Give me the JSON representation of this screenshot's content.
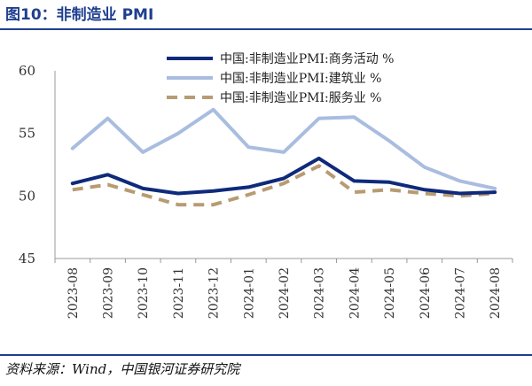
{
  "title": "图10：非制造业 PMI",
  "source": "资料来源：Wind，中国银河证券研究院",
  "chart_data": {
    "type": "line",
    "categories": [
      "2023-08",
      "2023-09",
      "2023-10",
      "2023-11",
      "2023-12",
      "2024-01",
      "2024-02",
      "2024-03",
      "2024-04",
      "2024-05",
      "2024-06",
      "2024-07",
      "2024-08"
    ],
    "ylim": [
      45,
      60
    ],
    "yticks": [
      45,
      50,
      55,
      60
    ],
    "series": [
      {
        "name": "中国:非制造业PMI:商务活动 %",
        "color": "#0f2a7a",
        "style": "solid",
        "values": [
          51.0,
          51.7,
          50.6,
          50.2,
          50.4,
          50.7,
          51.4,
          53.0,
          51.2,
          51.1,
          50.5,
          50.2,
          50.3
        ]
      },
      {
        "name": "中国:非制造业PMI:建筑业 %",
        "color": "#a9bde0",
        "style": "solid",
        "values": [
          53.8,
          56.2,
          53.5,
          55.0,
          56.9,
          53.9,
          53.5,
          56.2,
          56.3,
          54.4,
          52.3,
          51.2,
          50.6
        ]
      },
      {
        "name": "中国:非制造业PMI:服务业 %",
        "color": "#b89b72",
        "style": "dashed",
        "values": [
          50.5,
          50.9,
          50.1,
          49.3,
          49.3,
          50.1,
          51.0,
          52.4,
          50.3,
          50.5,
          50.2,
          50.0,
          50.2
        ]
      }
    ],
    "legend_position": "top-right",
    "grid": false
  }
}
